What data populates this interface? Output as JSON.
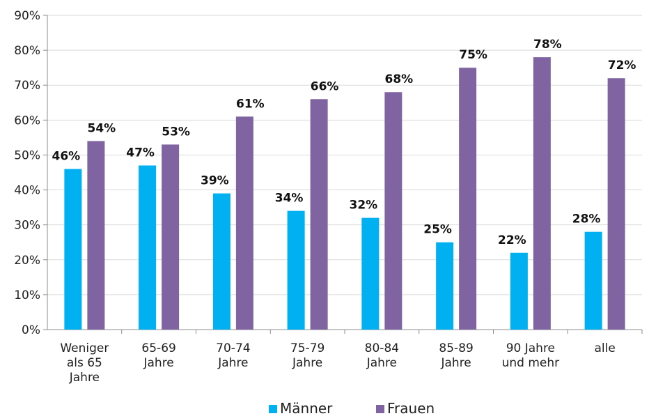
{
  "chart_data": {
    "type": "bar",
    "categories": [
      [
        "Weniger",
        "als 65",
        "Jahre"
      ],
      [
        "65-69",
        "Jahre"
      ],
      [
        "70-74",
        "Jahre"
      ],
      [
        "75-79",
        "Jahre"
      ],
      [
        "80-84",
        "Jahre"
      ],
      [
        "85-89",
        "Jahre"
      ],
      [
        "90 Jahre",
        "und mehr"
      ],
      [
        "alle"
      ]
    ],
    "series": [
      {
        "name": "Männer",
        "color": "#00B0F0",
        "values": [
          46,
          47,
          39,
          34,
          32,
          25,
          22,
          28
        ],
        "labels": [
          "46%",
          "47%",
          "39%",
          "34%",
          "32%",
          "25%",
          "22%",
          "28%"
        ]
      },
      {
        "name": "Frauen",
        "color": "#8064A2",
        "values": [
          54,
          53,
          61,
          66,
          68,
          75,
          78,
          72
        ],
        "labels": [
          "54%",
          "53%",
          "61%",
          "66%",
          "68%",
          "75%",
          "78%",
          "72%"
        ]
      }
    ],
    "ylim": [
      0,
      90
    ],
    "yticks": [
      "0%",
      "10%",
      "20%",
      "30%",
      "40%",
      "50%",
      "60%",
      "70%",
      "80%",
      "90%"
    ],
    "title": "",
    "xlabel": "",
    "ylabel": "",
    "grid": true,
    "legend_position": "bottom-center"
  }
}
